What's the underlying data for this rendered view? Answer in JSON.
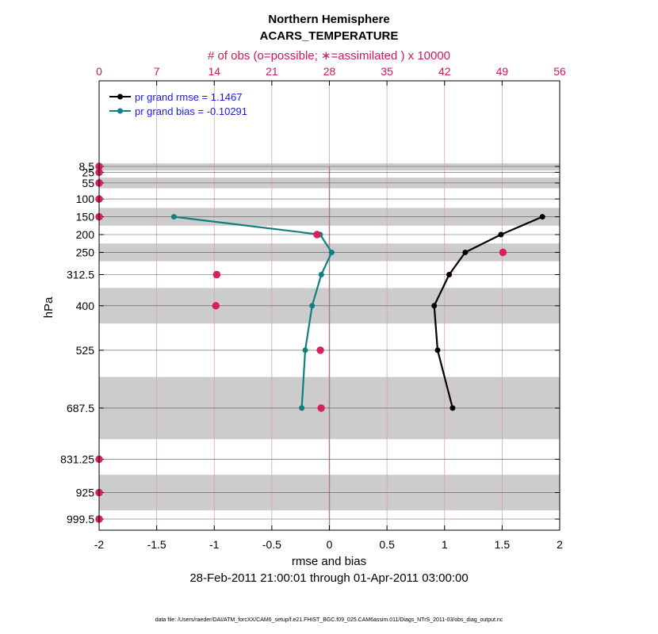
{
  "chart_data": {
    "type": "line",
    "title": "Northern Hemisphere",
    "subtitle": "ACARS_TEMPERATURE",
    "top_axis_label": "# of obs (o=possible; ∗=assimilated ) x 10000",
    "xlabel": "rmse and bias",
    "ylabel": "hPa",
    "date_range": "28-Feb-2011 21:00:01 through 01-Apr-2011 03:00:00",
    "footer": "data file: /Users/raeder/DAI/ATM_forcXX/CAM6_setup/f.e21.FHIST_BGC.f09_025.CAM6assim.011/Diags_NTrS_2011-03/obs_diag_output.nc",
    "xlim": [
      -2,
      2
    ],
    "x_ticks": [
      "-2",
      "-1.5",
      "-1",
      "-0.5",
      "0",
      "0.5",
      "1",
      "1.5",
      "2"
    ],
    "top_xlim": [
      0,
      56
    ],
    "top_ticks": [
      "0",
      "7",
      "14",
      "21",
      "28",
      "35",
      "42",
      "49",
      "56"
    ],
    "levels": [
      8.5,
      25,
      55,
      100,
      150,
      200,
      250,
      312.5,
      400,
      525,
      687.5,
      831.25,
      925,
      999.5
    ],
    "level_labels": [
      "8.5",
      "25",
      "55",
      "100",
      "150",
      "200",
      "250",
      "312.5",
      "400",
      "525",
      "687.5",
      "831.25",
      "925",
      "999.5"
    ],
    "shaded_bands": [
      [
        0,
        20
      ],
      [
        40,
        70
      ],
      [
        125,
        175
      ],
      [
        225,
        275
      ],
      [
        350,
        450
      ],
      [
        600,
        775
      ],
      [
        875,
        975
      ]
    ],
    "series": [
      {
        "name": "rmse",
        "legend": "pr grand rmse = 1.1467",
        "color": "#000000",
        "levels": [
          150,
          200,
          250,
          312.5,
          400,
          525,
          687.5
        ],
        "values": [
          1.85,
          1.49,
          1.18,
          1.04,
          0.91,
          0.94,
          1.07
        ]
      },
      {
        "name": "bias",
        "legend": "pr grand bias = -0.10291",
        "color": "#0f7f7f",
        "levels": [
          150,
          200,
          250,
          312.5,
          400,
          525,
          687.5
        ],
        "values": [
          -1.35,
          -0.08,
          0.02,
          -0.07,
          -0.15,
          -0.21,
          -0.24
        ]
      }
    ],
    "obs_counts": {
      "color": "#d81b60",
      "levels": [
        8.5,
        25,
        55,
        100,
        150,
        200,
        250,
        312.5,
        400,
        525,
        687.5,
        831.25,
        925,
        999.5
      ],
      "possible": [
        0,
        0,
        0,
        0,
        0,
        26.5,
        49.1,
        14.3,
        14.2,
        26.9,
        27.0,
        0,
        0,
        0
      ],
      "assimilated": [
        0,
        0,
        0,
        0,
        0,
        26.5,
        49.1,
        14.3,
        14.2,
        26.9,
        27.0,
        0,
        0,
        0
      ]
    }
  }
}
